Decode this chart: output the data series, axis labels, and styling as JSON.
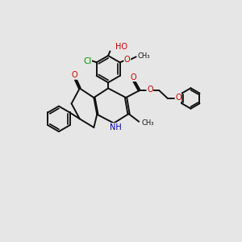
{
  "bg_color": "#e6e6e6",
  "bond_color": "#111111",
  "bond_lw": 1.4,
  "dbl_off": 0.055,
  "fs": 7.0,
  "colors": {
    "O": "#cc0000",
    "N": "#0000bb",
    "Cl": "#009900",
    "C": "#111111"
  },
  "xlim": [
    0,
    10
  ],
  "ylim": [
    0,
    10
  ]
}
